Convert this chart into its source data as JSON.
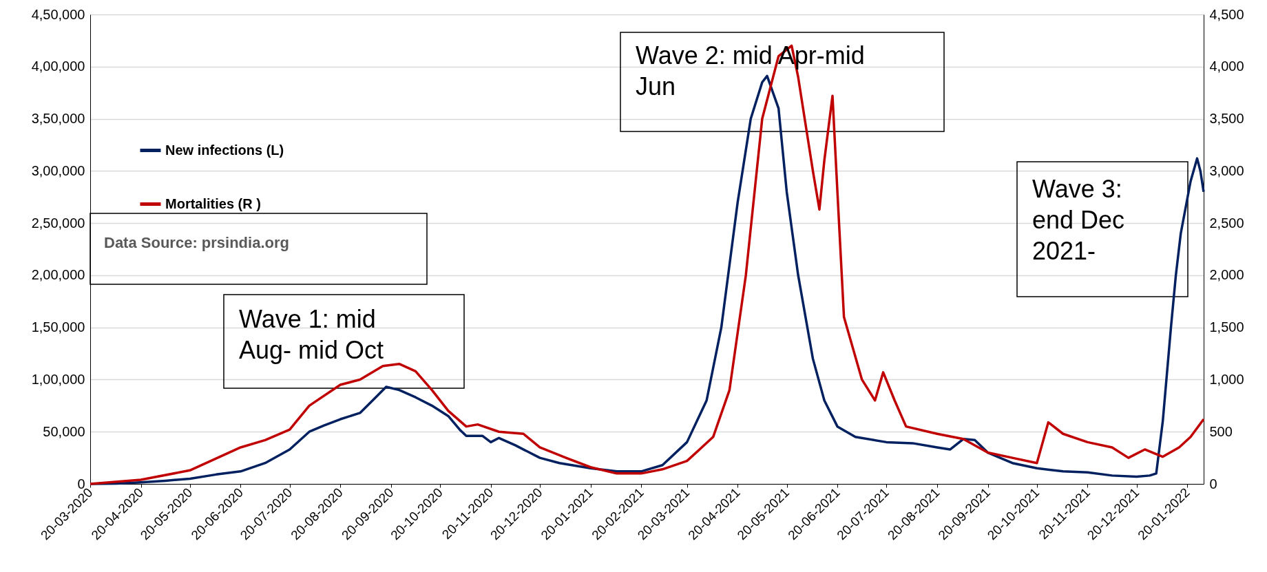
{
  "chart_data": {
    "type": "line",
    "x": [
      "2020-03-20",
      "2020-04-05",
      "2020-04-20",
      "2020-05-05",
      "2020-05-20",
      "2020-06-05",
      "2020-06-20",
      "2020-07-05",
      "2020-07-20",
      "2020-08-01",
      "2020-08-10",
      "2020-08-20",
      "2020-09-01",
      "2020-09-10",
      "2020-09-17",
      "2020-09-25",
      "2020-10-05",
      "2020-10-15",
      "2020-10-25",
      "2020-11-01",
      "2020-11-05",
      "2020-11-15",
      "2020-11-20",
      "2020-11-25",
      "2020-12-05",
      "2020-12-20",
      "2021-01-01",
      "2021-01-20",
      "2021-02-05",
      "2021-02-20",
      "2021-03-05",
      "2021-03-20",
      "2021-04-01",
      "2021-04-10",
      "2021-04-20",
      "2021-04-28",
      "2021-05-05",
      "2021-05-08",
      "2021-05-15",
      "2021-05-20",
      "2021-05-27",
      "2021-06-05",
      "2021-06-12",
      "2021-06-20",
      "2021-07-01",
      "2021-07-20",
      "2021-08-05",
      "2021-08-20",
      "2021-08-28",
      "2021-09-05",
      "2021-09-12",
      "2021-09-20",
      "2021-10-05",
      "2021-10-20",
      "2021-11-05",
      "2021-11-20",
      "2021-12-05",
      "2021-12-20",
      "2021-12-28",
      "2022-01-01",
      "2022-01-05",
      "2022-01-10",
      "2022-01-13",
      "2022-01-16",
      "2022-01-22",
      "2022-01-26",
      "2022-01-28",
      "2022-01-30"
    ],
    "series": [
      {
        "name": "New infections (L)",
        "color": "#002060",
        "axis": "y",
        "values": [
          0,
          300,
          1500,
          3000,
          5000,
          9000,
          12000,
          20000,
          33000,
          50000,
          56000,
          62000,
          68000,
          82000,
          93000,
          90000,
          83000,
          75000,
          65000,
          52000,
          46000,
          46000,
          40000,
          44000,
          37000,
          25000,
          20000,
          15000,
          12000,
          12000,
          18000,
          40000,
          80000,
          150000,
          270000,
          350000,
          385000,
          391000,
          360000,
          280000,
          200000,
          120000,
          80000,
          55000,
          45000,
          40000,
          39000,
          35000,
          33000,
          43000,
          42000,
          30000,
          20000,
          15000,
          12000,
          11000,
          8000,
          7000,
          8000,
          10000,
          60000,
          150000,
          200000,
          240000,
          290000,
          312000,
          300000,
          280000
        ]
      },
      {
        "x": [
          "2020-03-20",
          "2020-04-20",
          "2020-05-20",
          "2020-06-20",
          "2020-07-05",
          "2020-07-20",
          "2020-08-01",
          "2020-08-20",
          "2020-09-01",
          "2020-09-15",
          "2020-09-25",
          "2020-10-05",
          "2020-10-15",
          "2020-10-25",
          "2020-11-05",
          "2020-11-12",
          "2020-11-25",
          "2020-12-10",
          "2020-12-20",
          "2021-01-05",
          "2021-01-20",
          "2021-02-05",
          "2021-02-20",
          "2021-03-05",
          "2021-03-20",
          "2021-04-05",
          "2021-04-15",
          "2021-04-25",
          "2021-05-05",
          "2021-05-15",
          "2021-05-23",
          "2021-05-27",
          "2021-06-01",
          "2021-06-05",
          "2021-06-09",
          "2021-06-12",
          "2021-06-17",
          "2021-06-20",
          "2021-06-24",
          "2021-07-05",
          "2021-07-13",
          "2021-07-18",
          "2021-07-25",
          "2021-08-01",
          "2021-08-20",
          "2021-09-05",
          "2021-09-20",
          "2021-10-05",
          "2021-10-20",
          "2021-10-27",
          "2021-11-05",
          "2021-11-20",
          "2021-12-05",
          "2021-12-15",
          "2021-12-25",
          "2022-01-05",
          "2022-01-15",
          "2022-01-22",
          "2022-01-30"
        ],
        "name": "Mortalities (R )",
        "color": "#c00000",
        "axis": "y2",
        "values": [
          0,
          40,
          130,
          350,
          420,
          520,
          750,
          950,
          1000,
          1130,
          1150,
          1080,
          900,
          700,
          550,
          570,
          500,
          480,
          350,
          250,
          160,
          100,
          100,
          140,
          220,
          450,
          900,
          2000,
          3500,
          4100,
          4200,
          3900,
          3400,
          3000,
          2630,
          3100,
          3720,
          2800,
          1600,
          1000,
          800,
          1070,
          800,
          550,
          480,
          430,
          300,
          250,
          200,
          590,
          480,
          400,
          350,
          250,
          330,
          260,
          350,
          450,
          620
        ]
      }
    ],
    "xlim": [
      "2020-03-20",
      "2022-01-30"
    ],
    "xticks": [
      {
        "value": "2020-03-20",
        "label": "20-03-2020"
      },
      {
        "value": "2020-04-20",
        "label": "20-04-2020"
      },
      {
        "value": "2020-05-20",
        "label": "20-05-2020"
      },
      {
        "value": "2020-06-20",
        "label": "20-06-2020"
      },
      {
        "value": "2020-07-20",
        "label": "20-07-2020"
      },
      {
        "value": "2020-08-20",
        "label": "20-08-2020"
      },
      {
        "value": "2020-09-20",
        "label": "20-09-2020"
      },
      {
        "value": "2020-10-20",
        "label": "20-10-2020"
      },
      {
        "value": "2020-11-20",
        "label": "20-11-2020"
      },
      {
        "value": "2020-12-20",
        "label": "20-12-2020"
      },
      {
        "value": "2021-01-20",
        "label": "20-01-2021"
      },
      {
        "value": "2021-02-20",
        "label": "20-02-2021"
      },
      {
        "value": "2021-03-20",
        "label": "20-03-2021"
      },
      {
        "value": "2021-04-20",
        "label": "20-04-2021"
      },
      {
        "value": "2021-05-20",
        "label": "20-05-2021"
      },
      {
        "value": "2021-06-20",
        "label": "20-06-2021"
      },
      {
        "value": "2021-07-20",
        "label": "20-07-2021"
      },
      {
        "value": "2021-08-20",
        "label": "20-08-2021"
      },
      {
        "value": "2021-09-20",
        "label": "20-09-2021"
      },
      {
        "value": "2021-10-20",
        "label": "20-10-2021"
      },
      {
        "value": "2021-11-20",
        "label": "20-11-2021"
      },
      {
        "value": "2021-12-20",
        "label": "20-12-2021"
      },
      {
        "value": "2022-01-20",
        "label": "20-01-2022"
      }
    ],
    "ylim": [
      0,
      450000
    ],
    "yticks": [
      0,
      {
        "value": 50000,
        "label": "50,000"
      },
      {
        "value": 100000,
        "label": "1,00,000"
      },
      {
        "value": 150000,
        "label": "1,50,000"
      },
      {
        "value": 200000,
        "label": "2,00,000"
      },
      {
        "value": 250000,
        "label": "2,50,000"
      },
      {
        "value": 300000,
        "label": "3,00,000"
      },
      {
        "value": 350000,
        "label": "3,50,000"
      },
      {
        "value": 400000,
        "label": "4,00,000"
      },
      {
        "value": 450000,
        "label": "4,50,000"
      }
    ],
    "y2lim": [
      0,
      4500
    ],
    "y2ticks": [
      0,
      500,
      {
        "value": 1000,
        "label": "1,000"
      },
      {
        "value": 1500,
        "label": "1,500"
      },
      {
        "value": 2000,
        "label": "2,000"
      },
      {
        "value": 2500,
        "label": "2,500"
      },
      {
        "value": 3000,
        "label": "3,000"
      },
      {
        "value": 3500,
        "label": "3,500"
      },
      {
        "value": 4000,
        "label": "4,000"
      },
      {
        "value": 4500,
        "label": "4,500"
      }
    ],
    "annotations": [
      "Wave 1: mid\nAug- mid Oct",
      "Wave 2: mid Apr-mid\nJun",
      "Wave 3:\nend Dec\n2021-",
      "Data Source: prsindia.org"
    ],
    "grid": "y",
    "legend": "top left",
    "line_style": "solid",
    "marker": "none"
  }
}
